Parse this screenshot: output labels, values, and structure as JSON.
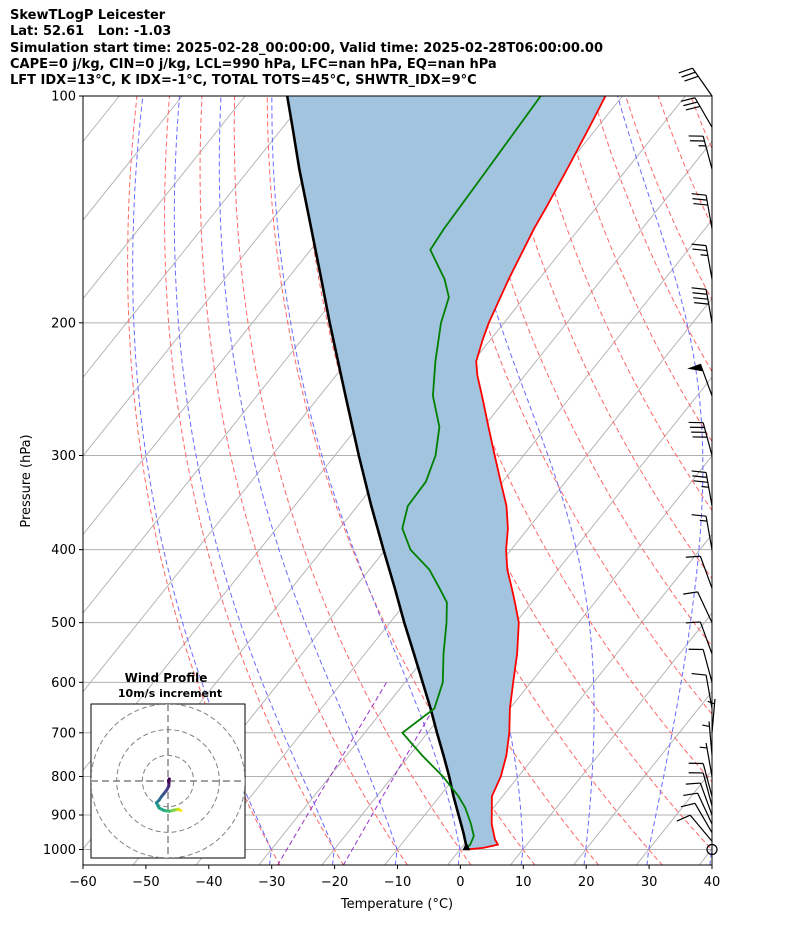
{
  "header": {
    "lines": [
      "SkewTLogP Leicester",
      "Lat: 52.61   Lon: -1.03",
      "Simulation start time: 2025-02-28_00:00:00, Valid time: 2025-02-28T06:00:00.00",
      "CAPE=0 j/kg, CIN=0 j/kg, LCL=990 hPa, LFC=nan hPa, EQ=nan hPa",
      "LFT IDX=13°C, K IDX=-1°C, TOTAL TOTS=45°C, SHWTR_IDX=9°C"
    ]
  },
  "chart_data": {
    "type": "skewt",
    "xlabel": "Temperature (°C)",
    "ylabel": "Pressure (hPa)",
    "xlim": [
      -60,
      40
    ],
    "ylim_hPa": [
      1050,
      100
    ],
    "x_ticks": [
      "−60",
      "−50",
      "−40",
      "−30",
      "−20",
      "−10",
      "0",
      "10",
      "20",
      "30",
      "40"
    ],
    "y_ticks": [
      "100",
      "200",
      "300",
      "400",
      "500",
      "600",
      "700",
      "800",
      "900",
      "1000"
    ],
    "grid": true,
    "colors": {
      "temperature": "#ff0000",
      "dewpoint": "#008000",
      "parcel": "#000000",
      "cape_fill": "#a3c4de",
      "dry_adiabat": "#ff6666",
      "moist_adiabat": "#6a6aff",
      "mixing_ratio": "#9932cc",
      "isotherm": "#b0b0b0"
    },
    "temperature": [
      {
        "p": 1000,
        "t": 0.9
      },
      {
        "p": 995,
        "t": 3.5
      },
      {
        "p": 985,
        "t": 5.4
      },
      {
        "p": 970,
        "t": 4.3
      },
      {
        "p": 925,
        "t": 1.8
      },
      {
        "p": 850,
        "t": -1.7
      },
      {
        "p": 800,
        "t": -2.8
      },
      {
        "p": 750,
        "t": -4.6
      },
      {
        "p": 700,
        "t": -7.0
      },
      {
        "p": 650,
        "t": -10.0
      },
      {
        "p": 600,
        "t": -12.8
      },
      {
        "p": 550,
        "t": -15.8
      },
      {
        "p": 500,
        "t": -19.5
      },
      {
        "p": 470,
        "t": -22.7
      },
      {
        "p": 450,
        "t": -25.0
      },
      {
        "p": 425,
        "t": -28.1
      },
      {
        "p": 400,
        "t": -30.8
      },
      {
        "p": 375,
        "t": -33.2
      },
      {
        "p": 350,
        "t": -36.3
      },
      {
        "p": 325,
        "t": -40.3
      },
      {
        "p": 300,
        "t": -44.6
      },
      {
        "p": 275,
        "t": -49.2
      },
      {
        "p": 250,
        "t": -54.2
      },
      {
        "p": 235,
        "t": -57.5
      },
      {
        "p": 225,
        "t": -59.5
      },
      {
        "p": 210,
        "t": -61.3
      },
      {
        "p": 200,
        "t": -62.4
      },
      {
        "p": 175,
        "t": -64.8
      },
      {
        "p": 150,
        "t": -67.2
      },
      {
        "p": 140,
        "t": -68.0
      },
      {
        "p": 125,
        "t": -69.5
      },
      {
        "p": 110,
        "t": -71.3
      },
      {
        "p": 100,
        "t": -72.7
      }
    ],
    "dewpoint": [
      {
        "p": 1000,
        "t": 0.7
      },
      {
        "p": 985,
        "t": 1.0
      },
      {
        "p": 960,
        "t": 0.5
      },
      {
        "p": 925,
        "t": -1.5
      },
      {
        "p": 880,
        "t": -4.5
      },
      {
        "p": 850,
        "t": -7.0
      },
      {
        "p": 800,
        "t": -12.0
      },
      {
        "p": 750,
        "t": -18.0
      },
      {
        "p": 700,
        "t": -24.0
      },
      {
        "p": 650,
        "t": -22.0
      },
      {
        "p": 600,
        "t": -24.0
      },
      {
        "p": 550,
        "t": -27.5
      },
      {
        "p": 500,
        "t": -31.0
      },
      {
        "p": 470,
        "t": -33.5
      },
      {
        "p": 450,
        "t": -36.5
      },
      {
        "p": 425,
        "t": -40.5
      },
      {
        "p": 400,
        "t": -46.0
      },
      {
        "p": 375,
        "t": -50.0
      },
      {
        "p": 350,
        "t": -52.0
      },
      {
        "p": 325,
        "t": -52.2
      },
      {
        "p": 300,
        "t": -54.0
      },
      {
        "p": 275,
        "t": -57.0
      },
      {
        "p": 250,
        "t": -62.0
      },
      {
        "p": 225,
        "t": -66.0
      },
      {
        "p": 200,
        "t": -70.0
      },
      {
        "p": 185,
        "t": -72.0
      },
      {
        "p": 175,
        "t": -75.0
      },
      {
        "p": 160,
        "t": -81.0
      },
      {
        "p": 150,
        "t": -81.5
      },
      {
        "p": 130,
        "t": -82.0
      },
      {
        "p": 100,
        "t": -83.0
      }
    ],
    "parcel": [
      {
        "p": 1000,
        "t": 0.9
      },
      {
        "p": 990,
        "t": 0.6
      },
      {
        "p": 950,
        "t": -1.6
      },
      {
        "p": 900,
        "t": -4.6
      },
      {
        "p": 850,
        "t": -7.8
      },
      {
        "p": 800,
        "t": -11.0
      },
      {
        "p": 750,
        "t": -14.6
      },
      {
        "p": 700,
        "t": -18.5
      },
      {
        "p": 650,
        "t": -22.6
      },
      {
        "p": 600,
        "t": -27.2
      },
      {
        "p": 550,
        "t": -32.2
      },
      {
        "p": 500,
        "t": -37.7
      },
      {
        "p": 450,
        "t": -43.6
      },
      {
        "p": 400,
        "t": -50.3
      },
      {
        "p": 350,
        "t": -57.8
      },
      {
        "p": 300,
        "t": -66.2
      },
      {
        "p": 250,
        "t": -75.9
      },
      {
        "p": 200,
        "t": -87.7
      },
      {
        "p": 175,
        "t": -94.6
      },
      {
        "p": 150,
        "t": -102.6
      },
      {
        "p": 125,
        "t": -112.1
      },
      {
        "p": 110,
        "t": -118.5
      },
      {
        "p": 100,
        "t": -123.3
      }
    ],
    "wind_barbs": [
      {
        "p": 1000,
        "speed_kt": 0,
        "dir_deg": 0
      },
      {
        "p": 975,
        "speed_kt": 10,
        "dir_deg": 320
      },
      {
        "p": 950,
        "speed_kt": 10,
        "dir_deg": 330
      },
      {
        "p": 925,
        "speed_kt": 10,
        "dir_deg": 335
      },
      {
        "p": 900,
        "speed_kt": 10,
        "dir_deg": 340
      },
      {
        "p": 875,
        "speed_kt": 10,
        "dir_deg": 345
      },
      {
        "p": 850,
        "speed_kt": 10,
        "dir_deg": 345
      },
      {
        "p": 800,
        "speed_kt": 5,
        "dir_deg": 350
      },
      {
        "p": 750,
        "speed_kt": 5,
        "dir_deg": 355
      },
      {
        "p": 700,
        "speed_kt": 5,
        "dir_deg": 5
      },
      {
        "p": 650,
        "speed_kt": 10,
        "dir_deg": 350
      },
      {
        "p": 600,
        "speed_kt": 10,
        "dir_deg": 345
      },
      {
        "p": 550,
        "speed_kt": 10,
        "dir_deg": 340
      },
      {
        "p": 500,
        "speed_kt": 10,
        "dir_deg": 335
      },
      {
        "p": 450,
        "speed_kt": 10,
        "dir_deg": 340
      },
      {
        "p": 400,
        "speed_kt": 15,
        "dir_deg": 350
      },
      {
        "p": 350,
        "speed_kt": 35,
        "dir_deg": 350
      },
      {
        "p": 300,
        "speed_kt": 40,
        "dir_deg": 345
      },
      {
        "p": 250,
        "speed_kt": 50,
        "dir_deg": 340
      },
      {
        "p": 200,
        "speed_kt": 40,
        "dir_deg": 350
      },
      {
        "p": 175,
        "speed_kt": 25,
        "dir_deg": 350
      },
      {
        "p": 150,
        "speed_kt": 30,
        "dir_deg": 350
      },
      {
        "p": 125,
        "speed_kt": 25,
        "dir_deg": 345
      },
      {
        "p": 110,
        "speed_kt": 30,
        "dir_deg": 330
      },
      {
        "p": 100,
        "speed_kt": 30,
        "dir_deg": 325
      }
    ],
    "hodograph": {
      "title": "Wind Profile",
      "subtitle": "10m/s increment",
      "rings_ms": [
        10,
        20,
        30
      ],
      "range_ms": 30,
      "points": [
        {
          "u": 5.0,
          "v": -11.5
        },
        {
          "u": 4.0,
          "v": -11.0
        },
        {
          "u": 2.5,
          "v": -11.3
        },
        {
          "u": 0.5,
          "v": -11.8
        },
        {
          "u": -1.5,
          "v": -11.5
        },
        {
          "u": -3.5,
          "v": -10.5
        },
        {
          "u": -4.5,
          "v": -8.5
        },
        {
          "u": -3.5,
          "v": -7.5
        },
        {
          "u": -2.5,
          "v": -6.0
        },
        {
          "u": -1.5,
          "v": -4.8
        },
        {
          "u": -0.5,
          "v": -3.5
        },
        {
          "u": 0.3,
          "v": -2.0
        },
        {
          "u": 0.4,
          "v": -0.8
        },
        {
          "u": 0.2,
          "v": 0.1
        },
        {
          "u": 0.5,
          "v": 0.8
        },
        {
          "u": 0.3,
          "v": -0.3
        }
      ]
    }
  }
}
